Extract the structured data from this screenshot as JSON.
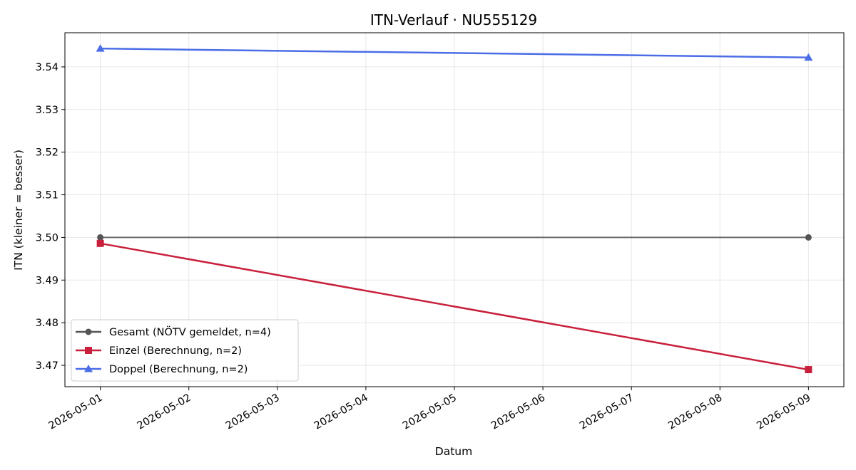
{
  "chart_data": {
    "type": "line",
    "title": "ITN-Verlauf · NU555129",
    "xlabel": "Datum",
    "ylabel": "ITN  (kleiner = besser)",
    "x_ticks": [
      "2026-05-01",
      "2026-05-02",
      "2026-05-03",
      "2026-05-04",
      "2026-05-05",
      "2026-05-06",
      "2026-05-07",
      "2026-05-08",
      "2026-05-09"
    ],
    "xlim": [
      "2026-04-30T14:24",
      "2026-05-09T09:36"
    ],
    "y_ticks": [
      "3.47",
      "3.48",
      "3.49",
      "3.50",
      "3.51",
      "3.52",
      "3.53",
      "3.54"
    ],
    "ylim": [
      3.465,
      3.548
    ],
    "grid": true,
    "legend_position": "lower-left",
    "series": [
      {
        "name": "Gesamt (NÖTV gemeldet, n=4)",
        "color": "#555555",
        "marker": "circle",
        "points": [
          {
            "x": "2026-05-01",
            "y": 3.5
          },
          {
            "x": "2026-05-09",
            "y": 3.5
          }
        ]
      },
      {
        "name": "Einzel (Berechnung, n=2)",
        "color": "#c8203c",
        "marker": "square",
        "points": [
          {
            "x": "2026-05-01",
            "y": 3.4986
          },
          {
            "x": "2026-05-09",
            "y": 3.469
          }
        ]
      },
      {
        "name": "Doppel (Berechnung, n=2)",
        "color": "#4b6de6",
        "marker": "triangle",
        "points": [
          {
            "x": "2026-05-01",
            "y": 3.5443
          },
          {
            "x": "2026-05-09",
            "y": 3.5422
          }
        ]
      }
    ]
  }
}
